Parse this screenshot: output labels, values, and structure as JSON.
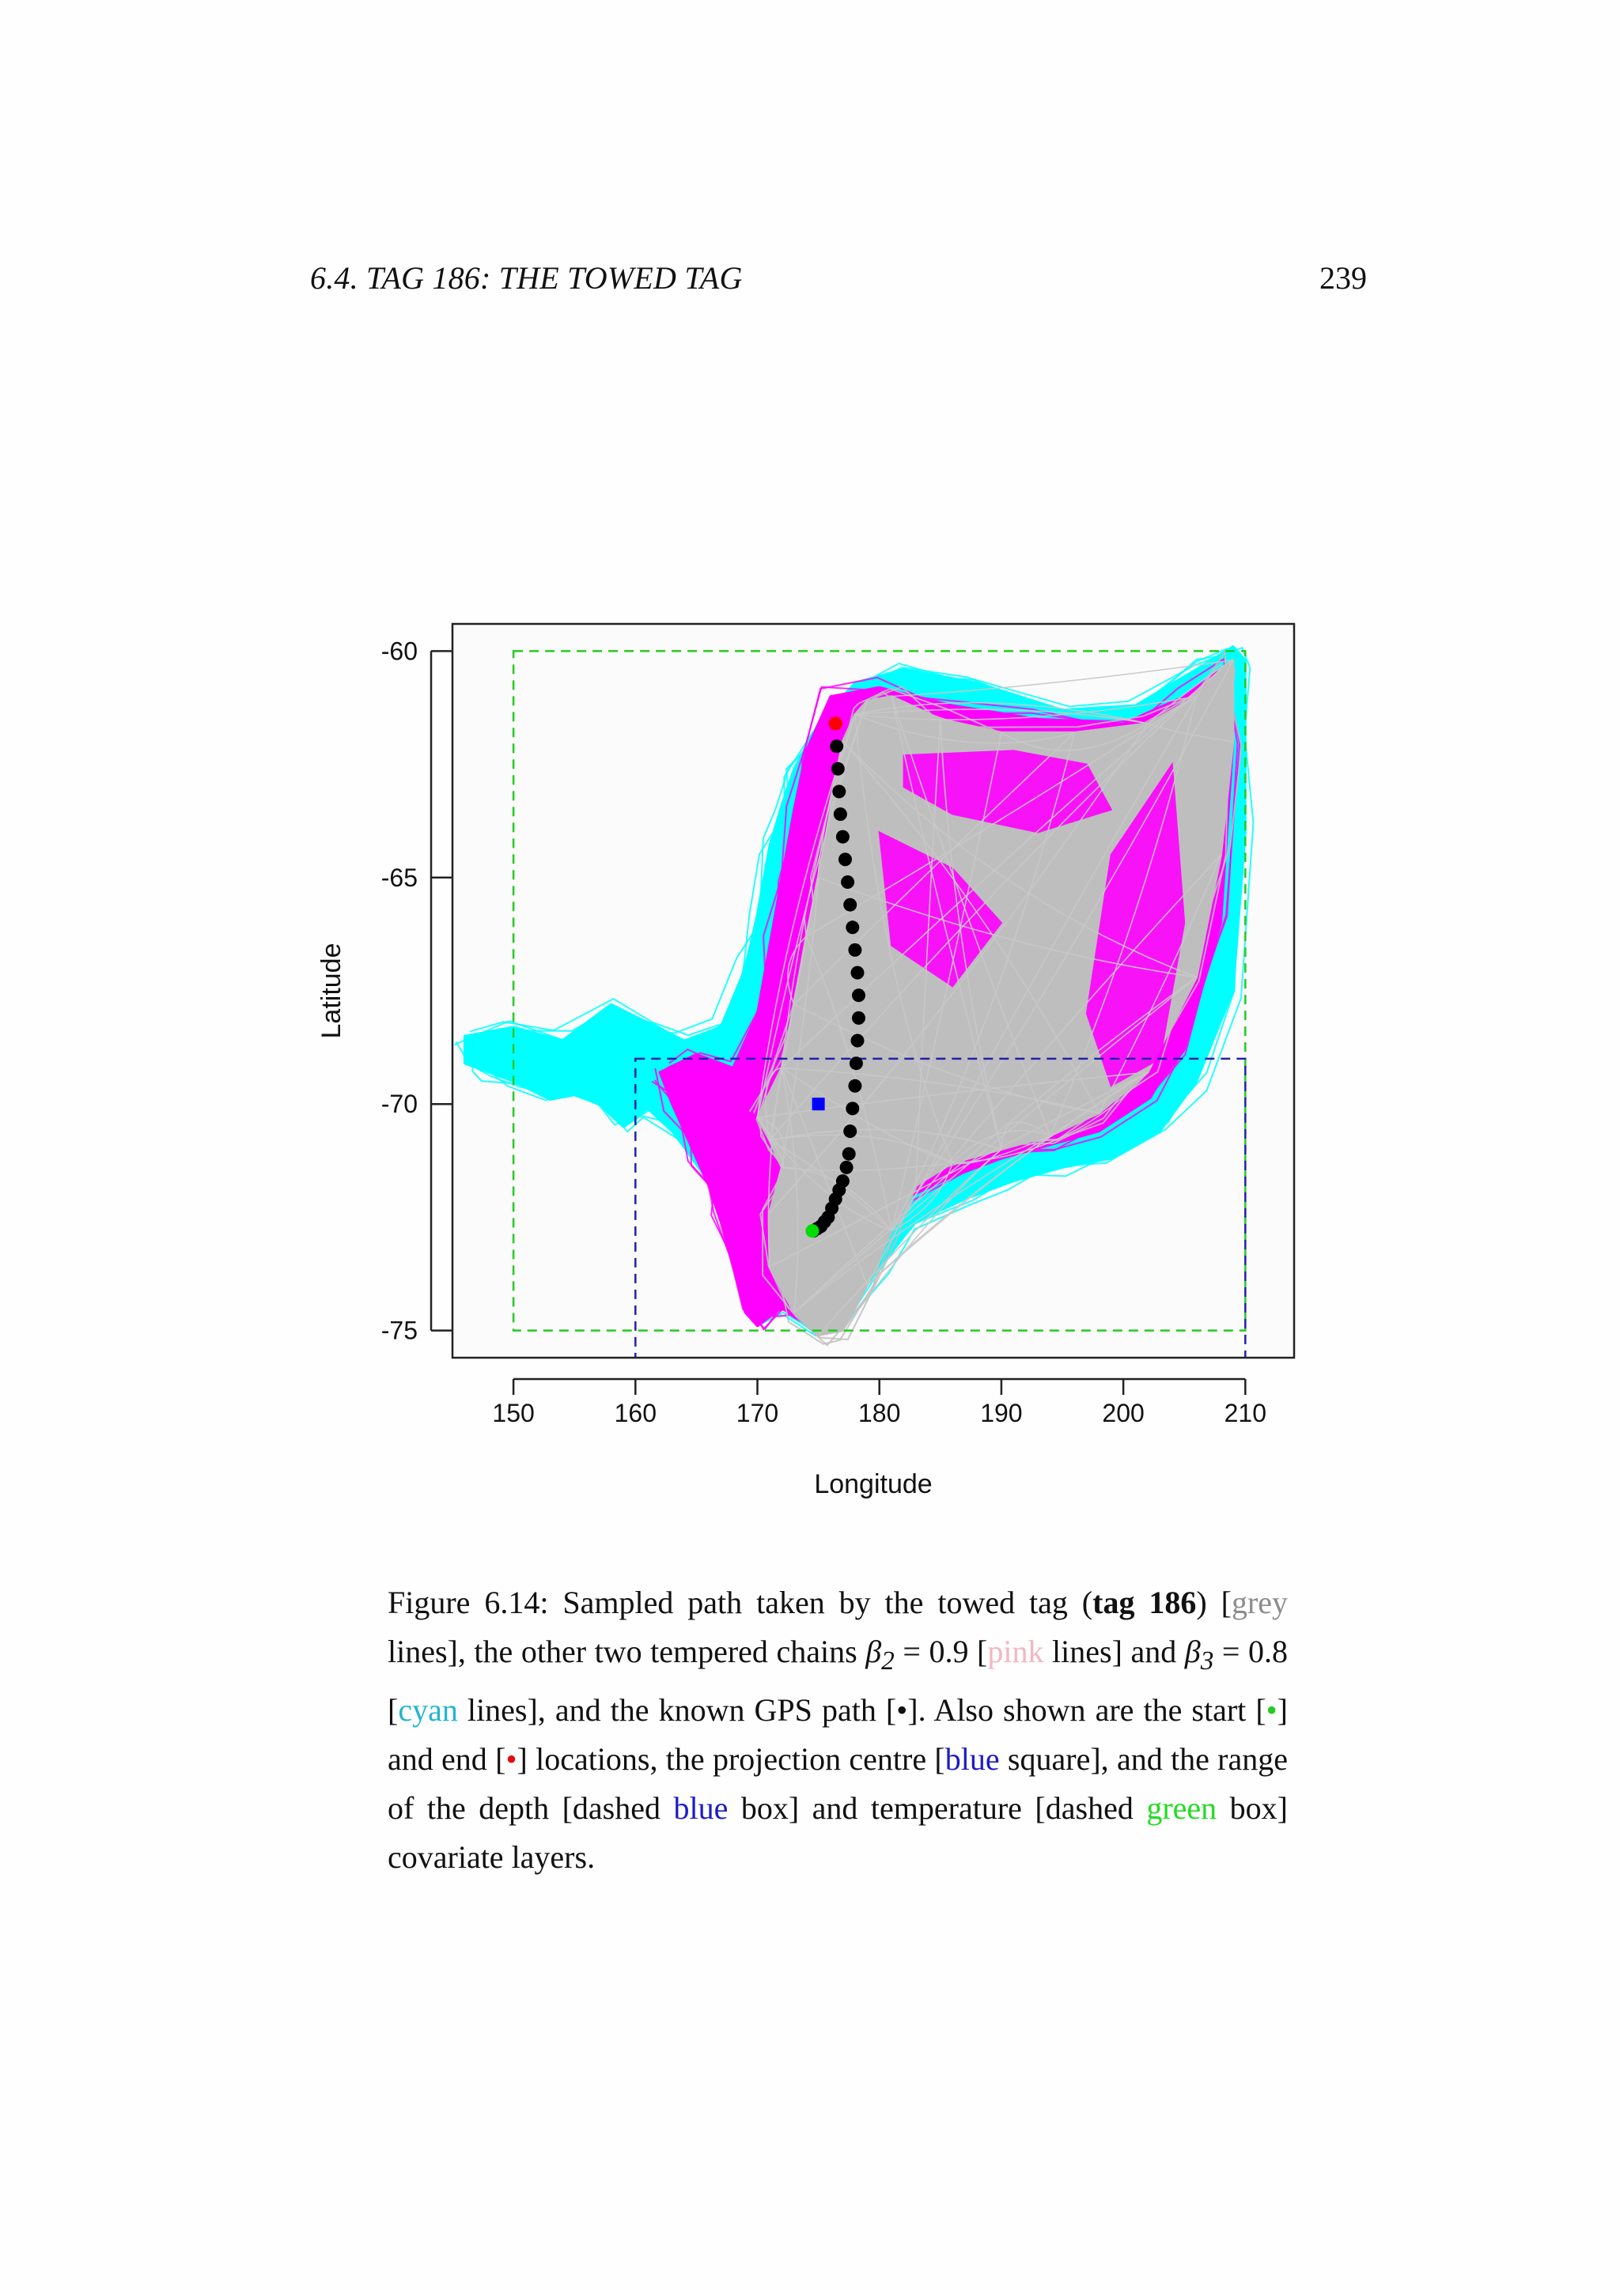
{
  "header": {
    "running_head": "6.4.  TAG 186: THE TOWED TAG",
    "page_number": "239"
  },
  "chart_data": {
    "type": "scatter",
    "xlabel": "Longitude",
    "ylabel": "Latitude",
    "xlim": [
      145,
      214
    ],
    "ylim": [
      -75.6,
      -59.4
    ],
    "xticks": [
      "150",
      "160",
      "170",
      "180",
      "190",
      "200",
      "210"
    ],
    "yticks": [
      "-60",
      "-65",
      "-70",
      "-75"
    ],
    "colors": {
      "grey": "#bebebe",
      "pink": "#ff00ff",
      "cyan": "#00ffff",
      "blue": "#0000ff",
      "green": "#00dd00",
      "black": "#000000",
      "red": "#ff0000"
    },
    "series": [
      {
        "style": "cyan lines",
        "color": "#00ffff",
        "x": [
          146,
          150,
          154,
          158,
          161,
          164,
          167,
          169,
          170,
          171,
          172,
          173,
          175,
          178,
          182,
          188,
          195,
          201,
          206,
          209,
          210,
          210,
          209,
          206,
          203,
          199,
          195,
          191,
          187,
          183,
          180,
          177,
          175,
          174,
          172,
          170,
          169,
          168,
          167,
          165,
          163,
          161,
          159,
          157,
          155,
          153,
          150,
          148,
          146,
          146
        ],
        "y": [
          -68.5,
          -68.3,
          -68.6,
          -67.8,
          -68.2,
          -68.6,
          -68.3,
          -67,
          -65.8,
          -64.3,
          -63.4,
          -62.6,
          -61.6,
          -60.7,
          -60.4,
          -60.7,
          -61.3,
          -61.2,
          -60.4,
          -59.9,
          -60.2,
          -64,
          -67.5,
          -69.5,
          -70.6,
          -71.2,
          -71.4,
          -71.7,
          -72.1,
          -72.6,
          -73.6,
          -74.8,
          -75.1,
          -74.9,
          -74.5,
          -74.8,
          -74.4,
          -73.2,
          -72.2,
          -71.3,
          -70.6,
          -70.1,
          -70.5,
          -70,
          -69.8,
          -69.9,
          -69.5,
          -69.3,
          -69.1,
          -68.5
        ]
      },
      {
        "style": "pink lines",
        "color": "#ff00ff",
        "x": [
          162,
          165,
          168,
          170,
          171,
          172,
          173,
          174,
          176,
          180,
          186,
          193,
          200,
          205,
          208,
          209,
          208,
          205,
          202,
          198,
          194,
          190,
          186,
          182,
          180,
          177,
          175,
          173,
          172,
          170,
          169,
          168,
          167,
          166,
          165,
          164,
          163,
          162
        ],
        "y": [
          -69.3,
          -68.9,
          -69.2,
          -68,
          -66.5,
          -65,
          -63.5,
          -62.2,
          -61,
          -60.8,
          -61.2,
          -61.5,
          -61.6,
          -61,
          -60.4,
          -62,
          -66,
          -68.8,
          -69.9,
          -70.6,
          -70.9,
          -71.2,
          -71.6,
          -72.1,
          -73.2,
          -74.6,
          -75,
          -74.7,
          -74.5,
          -74.9,
          -74.6,
          -73.6,
          -72.6,
          -71.8,
          -71.2,
          -70.6,
          -70,
          -69.3
        ]
      },
      {
        "style": "grey lines",
        "color": "#bebebe",
        "x": [
          170,
          172,
          173,
          174,
          175,
          176,
          177,
          178,
          179,
          181,
          185,
          190,
          196,
          202,
          206,
          208,
          209,
          209,
          208,
          206,
          202,
          198,
          194,
          190,
          186,
          183,
          181,
          179,
          177,
          175,
          173,
          171,
          171,
          172,
          171,
          170
        ],
        "y": [
          -70.3,
          -69.2,
          -67.8,
          -66.3,
          -65,
          -63.5,
          -62,
          -61.4,
          -61.1,
          -61,
          -61.5,
          -61.8,
          -61.8,
          -61.6,
          -61,
          -60.4,
          -60.2,
          -62,
          -64.5,
          -67.2,
          -69.3,
          -70.2,
          -70.7,
          -71,
          -71.3,
          -71.8,
          -72.8,
          -74,
          -75,
          -75.1,
          -74.6,
          -73.6,
          -72.4,
          -71.4,
          -70.8,
          -70.3
        ]
      },
      {
        "style": "known GPS path",
        "color": "#000000",
        "x": [
          176.4,
          176.5,
          176.6,
          176.7,
          176.8,
          177,
          177.2,
          177.4,
          177.6,
          177.8,
          178,
          178.2,
          178.3,
          178.3,
          178.2,
          178.1,
          178,
          177.8,
          177.6,
          177.5,
          177.3,
          177,
          176.7,
          176.4,
          176.1,
          175.8,
          175.5,
          175.2,
          174.9,
          174.6
        ],
        "y": [
          -61.6,
          -62.1,
          -62.6,
          -63.1,
          -63.6,
          -64.1,
          -64.6,
          -65.1,
          -65.6,
          -66.1,
          -66.6,
          -67.1,
          -67.6,
          -68.1,
          -68.6,
          -69.1,
          -69.6,
          -70.1,
          -70.6,
          -71.1,
          -71.4,
          -71.7,
          -71.9,
          -72.1,
          -72.3,
          -72.5,
          -72.6,
          -72.7,
          -72.75,
          -72.8
        ]
      }
    ],
    "markers": {
      "start": {
        "x": 174.5,
        "y": -72.8,
        "color": "#00dd00"
      },
      "end": {
        "x": 176.4,
        "y": -61.6,
        "color": "#ff0000"
      },
      "projection_centre": {
        "x": 175,
        "y": -70,
        "color": "#0000ff"
      }
    },
    "boxes": {
      "temperature": {
        "xmin": 150,
        "xmax": 210,
        "ymin": -75,
        "ymax": -60,
        "color": "#22cc22"
      },
      "depth": {
        "xmin": 160,
        "xmax": 210,
        "ymin": -76,
        "ymax": -69,
        "color": "#2222aa"
      }
    }
  },
  "caption": {
    "fig_label": "Figure 6.14:",
    "t1": " Sampled path taken by the towed tag (",
    "bold_tag": "tag 186",
    "t2": ") [",
    "grey_word": "grey",
    "t3": " lines], the other two tempered chains ",
    "beta2": "β",
    "beta2_sub": "2",
    "beta2_val": " = 0.9",
    "t4": " [",
    "pink_word": "pink",
    "t5": " lines] and ",
    "beta3": "β",
    "beta3_sub": "3",
    "beta3_val": " = 0.8",
    "t6": " [",
    "cyan_word": "cyan",
    "t7": " lines], and the known GPS path [",
    "black_dot": "•",
    "t8": "]. Also shown are the start [",
    "green_dot": "•",
    "t9": "] and end [",
    "red_dot": "•",
    "t10": "] locations, the projection centre [",
    "blue_word1": "blue",
    "t11": " square], and the range of the depth [dashed ",
    "blue_word2": "blue",
    "t12": " box] and temperature [dashed ",
    "green_word": "green",
    "t13": " box] covariate layers."
  }
}
